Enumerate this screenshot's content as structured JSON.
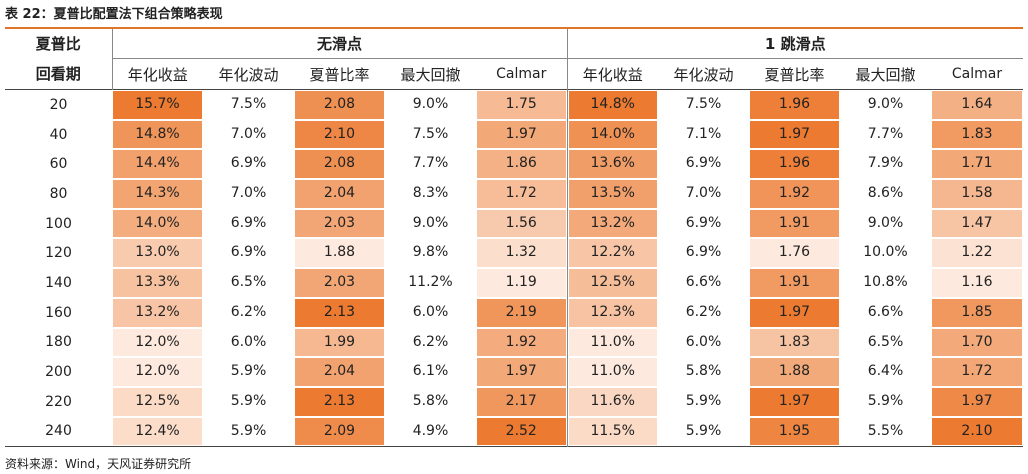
{
  "title": "表 22：夏普比配置法下组合策略表现",
  "source": "资料来源：Wind，天风证券研究所",
  "header": {
    "lookback_line1": "夏普比",
    "lookback_line2": "回看期",
    "group_no_slippage": "无滑点",
    "group_slippage": "1 跳滑点",
    "columns": [
      "年化收益",
      "年化波动",
      "夏普比率",
      "最大回撤",
      "Calmar",
      "年化收益",
      "年化波动",
      "夏普比率",
      "最大回撤",
      "Calmar"
    ]
  },
  "colors": {
    "heat_low": "#fde9dd",
    "heat_high": "#ec7a30",
    "rule": "#e0752a"
  },
  "heat_columns": [
    0,
    2,
    4,
    5,
    7,
    9
  ],
  "rows": [
    {
      "period": "20",
      "values": [
        "15.7%",
        "7.5%",
        "2.08",
        "9.0%",
        "1.75",
        "14.8%",
        "7.5%",
        "1.96",
        "9.0%",
        "1.64"
      ]
    },
    {
      "period": "40",
      "values": [
        "14.8%",
        "7.0%",
        "2.10",
        "7.5%",
        "1.97",
        "14.0%",
        "7.1%",
        "1.97",
        "7.7%",
        "1.83"
      ]
    },
    {
      "period": "60",
      "values": [
        "14.4%",
        "6.9%",
        "2.08",
        "7.7%",
        "1.86",
        "13.6%",
        "6.9%",
        "1.96",
        "7.9%",
        "1.71"
      ]
    },
    {
      "period": "80",
      "values": [
        "14.3%",
        "7.0%",
        "2.04",
        "8.3%",
        "1.72",
        "13.5%",
        "7.0%",
        "1.92",
        "8.6%",
        "1.58"
      ]
    },
    {
      "period": "100",
      "values": [
        "14.0%",
        "6.9%",
        "2.03",
        "9.0%",
        "1.56",
        "13.2%",
        "6.9%",
        "1.91",
        "9.0%",
        "1.47"
      ]
    },
    {
      "period": "120",
      "values": [
        "13.0%",
        "6.9%",
        "1.88",
        "9.8%",
        "1.32",
        "12.2%",
        "6.9%",
        "1.76",
        "10.0%",
        "1.22"
      ]
    },
    {
      "period": "140",
      "values": [
        "13.3%",
        "6.5%",
        "2.03",
        "11.2%",
        "1.19",
        "12.5%",
        "6.6%",
        "1.91",
        "10.8%",
        "1.16"
      ]
    },
    {
      "period": "160",
      "values": [
        "13.2%",
        "6.2%",
        "2.13",
        "6.0%",
        "2.19",
        "12.3%",
        "6.2%",
        "1.97",
        "6.6%",
        "1.85"
      ]
    },
    {
      "period": "180",
      "values": [
        "12.0%",
        "6.0%",
        "1.99",
        "6.2%",
        "1.92",
        "11.0%",
        "6.0%",
        "1.83",
        "6.5%",
        "1.70"
      ]
    },
    {
      "period": "200",
      "values": [
        "12.0%",
        "5.9%",
        "2.04",
        "6.1%",
        "1.97",
        "11.0%",
        "5.8%",
        "1.88",
        "6.4%",
        "1.72"
      ]
    },
    {
      "period": "220",
      "values": [
        "12.5%",
        "5.9%",
        "2.13",
        "5.8%",
        "2.17",
        "11.6%",
        "5.9%",
        "1.97",
        "5.9%",
        "1.97"
      ]
    },
    {
      "period": "240",
      "values": [
        "12.4%",
        "5.9%",
        "2.09",
        "4.9%",
        "2.52",
        "11.5%",
        "5.9%",
        "1.95",
        "5.5%",
        "2.10"
      ]
    }
  ]
}
